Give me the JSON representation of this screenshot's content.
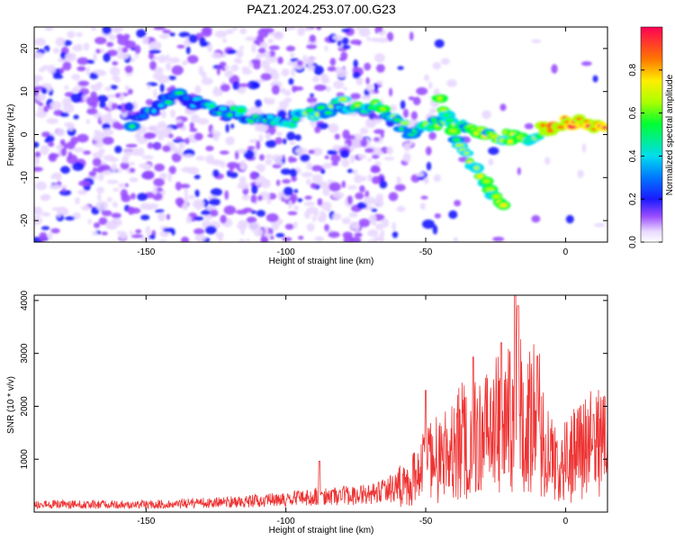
{
  "title": "PAZ1.2024.253.07.00.G23",
  "chart_data": [
    {
      "type": "heatmap",
      "xlabel": "Height of straight line (km)",
      "ylabel": "Frequency (Hz)",
      "xlim": [
        -190,
        15
      ],
      "ylim": [
        -25,
        25
      ],
      "xticks": [
        -150,
        -100,
        -50,
        0
      ],
      "yticks": [
        -20,
        -10,
        0,
        10,
        20
      ],
      "colorbar": {
        "label": "Normalized spectral amplitude",
        "range": [
          0,
          1
        ],
        "ticks": [
          "0.0",
          "0.2",
          "0.4",
          "0.6",
          "0.8"
        ],
        "tick_values": [
          0,
          0.2,
          0.4,
          0.6,
          0.8
        ]
      },
      "ridge": [
        {
          "x": -155,
          "y": 3
        },
        {
          "x": -140,
          "y": 9
        },
        {
          "x": -120,
          "y": 5
        },
        {
          "x": -100,
          "y": 3
        },
        {
          "x": -80,
          "y": 7
        },
        {
          "x": -65,
          "y": 6
        },
        {
          "x": -55,
          "y": 0
        },
        {
          "x": -42,
          "y": 4
        },
        {
          "x": -35,
          "y": 1
        },
        {
          "x": -25,
          "y": 0
        },
        {
          "x": -15,
          "y": -1
        },
        {
          "x": -5,
          "y": 2
        },
        {
          "x": 0,
          "y": 3
        },
        {
          "x": 15,
          "y": 2
        }
      ],
      "branch": [
        {
          "x": -45,
          "y": 8
        },
        {
          "x": -38,
          "y": -2
        },
        {
          "x": -30,
          "y": -10
        },
        {
          "x": -22,
          "y": -17
        }
      ]
    },
    {
      "type": "line",
      "xlabel": "Height of straight line (km)",
      "ylabel": "SNR (10 * v/v)",
      "xlim": [
        -190,
        15
      ],
      "ylim": [
        0,
        4100
      ],
      "xticks": [
        -150,
        -100,
        -50,
        0
      ],
      "yticks": [
        1000,
        2000,
        3000,
        4000
      ],
      "series": [
        {
          "color": "#ee3333",
          "envelope": [
            {
              "x": -190,
              "v": 150
            },
            {
              "x": -150,
              "v": 150
            },
            {
              "x": -120,
              "v": 200
            },
            {
              "x": -100,
              "v": 250
            },
            {
              "x": -90,
              "v": 300
            },
            {
              "x": -70,
              "v": 350
            },
            {
              "x": -60,
              "v": 500
            },
            {
              "x": -50,
              "v": 950
            },
            {
              "x": -45,
              "v": 1150
            },
            {
              "x": -40,
              "v": 1350
            },
            {
              "x": -35,
              "v": 1600
            },
            {
              "x": -30,
              "v": 1500
            },
            {
              "x": -25,
              "v": 1800
            },
            {
              "x": -20,
              "v": 2100
            },
            {
              "x": -17,
              "v": 2600
            },
            {
              "x": -14,
              "v": 1900
            },
            {
              "x": -10,
              "v": 2100
            },
            {
              "x": -7,
              "v": 1300
            },
            {
              "x": -3,
              "v": 900
            },
            {
              "x": 0,
              "v": 1100
            },
            {
              "x": 5,
              "v": 1300
            },
            {
              "x": 10,
              "v": 1500
            },
            {
              "x": 15,
              "v": 1300
            }
          ],
          "peaks": [
            {
              "x": -88,
              "v": 960
            },
            {
              "x": -50,
              "v": 2300
            },
            {
              "x": -33,
              "v": 2930
            },
            {
              "x": -23,
              "v": 3200
            },
            {
              "x": -18,
              "v": 4100
            },
            {
              "x": -17,
              "v": 3900
            },
            {
              "x": -10,
              "v": 2950
            },
            {
              "x": 10,
              "v": 1850
            }
          ]
        }
      ]
    }
  ]
}
